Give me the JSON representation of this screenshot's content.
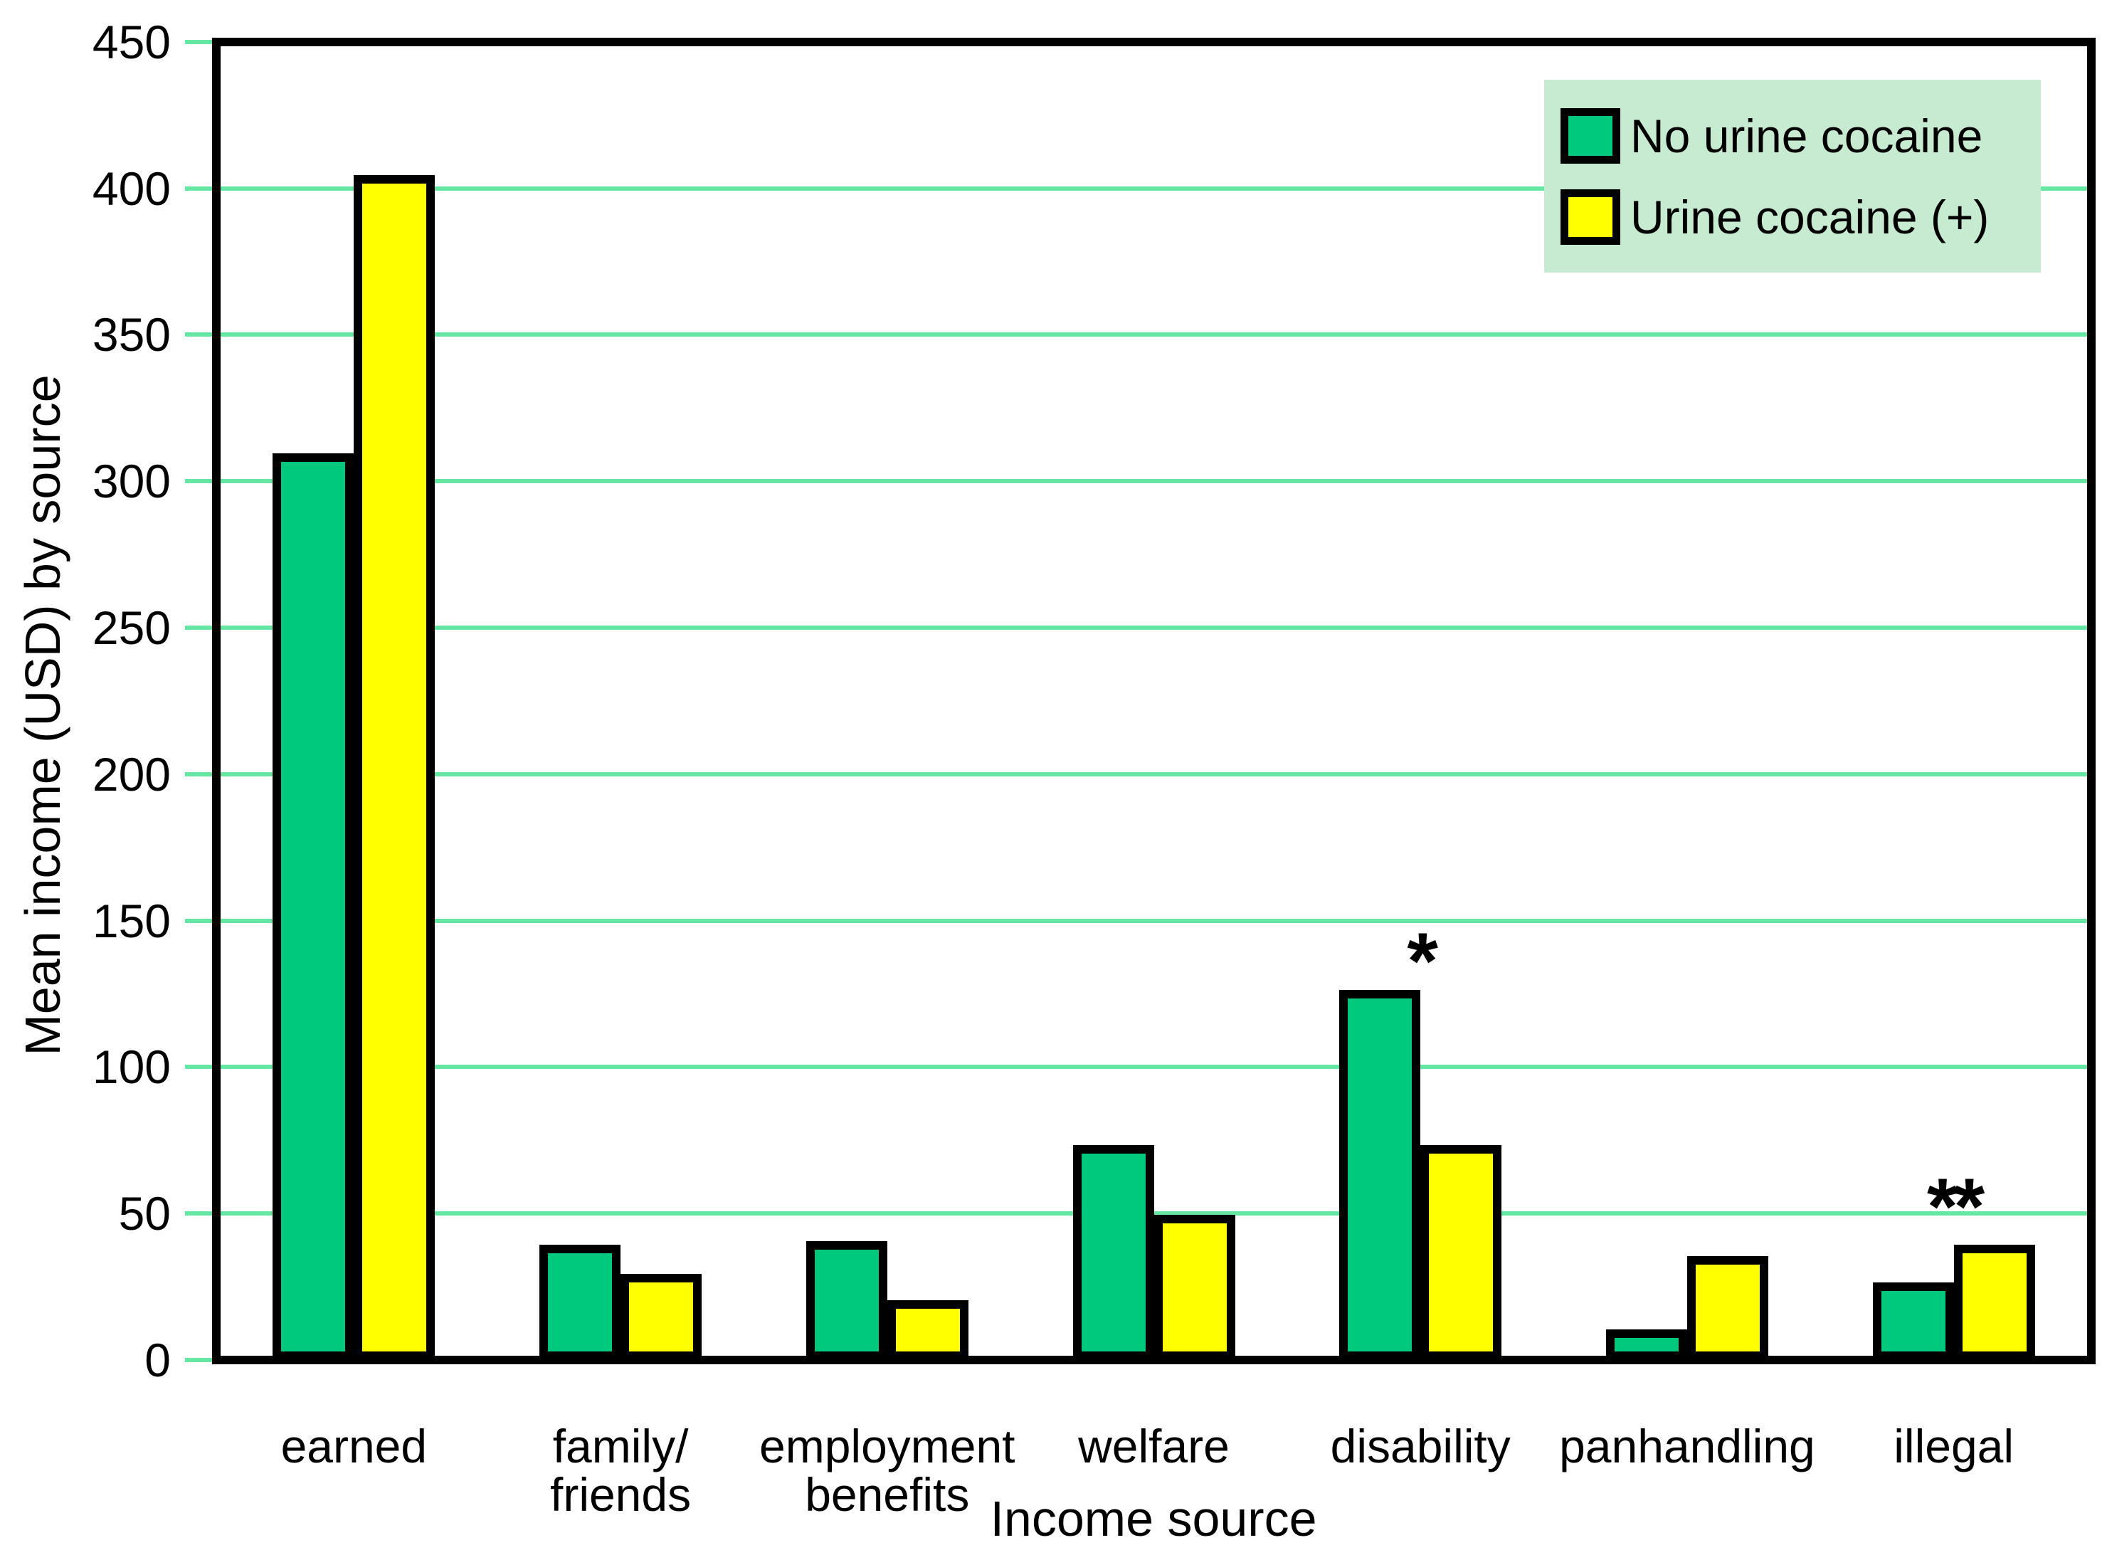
{
  "chart_data": {
    "type": "bar",
    "title": "",
    "xlabel": "Income source",
    "ylabel": "Mean income (USD) by source",
    "categories": [
      [
        "earned"
      ],
      [
        "family/",
        "friends"
      ],
      [
        "employment",
        "benefits"
      ],
      [
        "welfare"
      ],
      [
        "disability"
      ],
      [
        "panhandling"
      ],
      [
        "illegal"
      ]
    ],
    "series": [
      {
        "name": "No urine cocaine",
        "color": "#00C87D",
        "values": [
          308,
          38,
          39,
          72,
          125,
          9,
          25
        ]
      },
      {
        "name": "Urine cocaine (+)",
        "color": "#FFFF00",
        "values": [
          403,
          28,
          19,
          48,
          72,
          34,
          38
        ]
      }
    ],
    "ylim": [
      0,
      450
    ],
    "ytick_step": 50,
    "grid": true,
    "grid_color": "#66E6A3",
    "axis_color": "#000000",
    "legend_position": "top-right",
    "legend_background": "#C7EBD1",
    "annotations": [
      {
        "text": "*",
        "category_index": 4,
        "y_value": 141
      },
      {
        "text": "**",
        "category_index": 6,
        "y_value": 57
      }
    ]
  }
}
